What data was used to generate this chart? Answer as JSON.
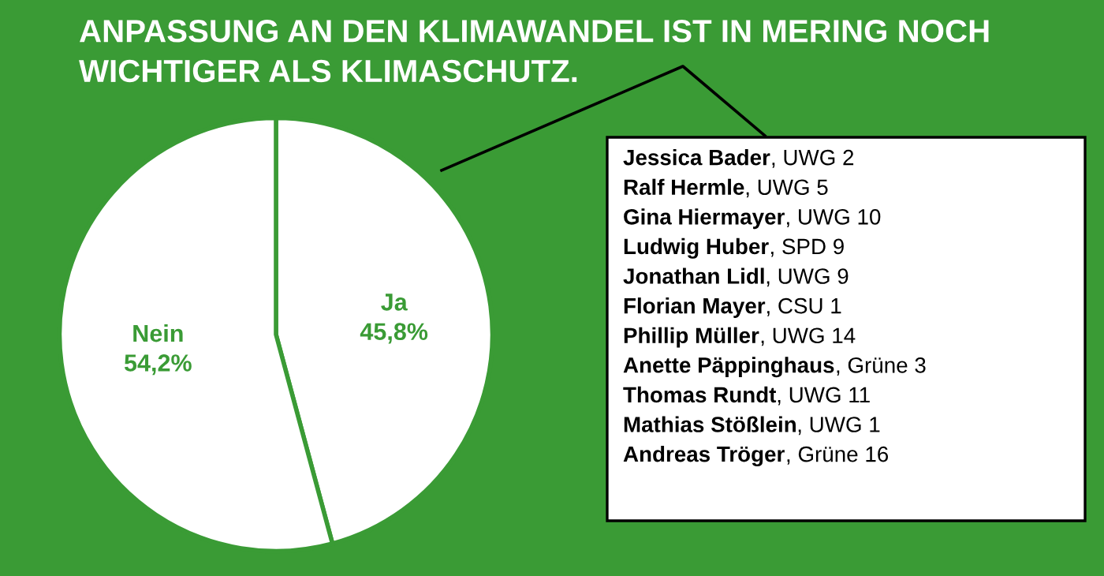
{
  "chart_data": {
    "type": "pie",
    "title": "ANPASSUNG AN DEN KLIMAWANDEL IST IN MERING NOCH\nWICHTIGER ALS KLIMASCHUTZ.",
    "categories": [
      "Ja",
      "Nein"
    ],
    "values": [
      45.8,
      54.2
    ],
    "value_labels": [
      "45,8%",
      "54,2%"
    ],
    "colors": [
      "#ffffff",
      "#ffffff"
    ],
    "annotations": [
      "Jessica Bader, UWG 2",
      "Ralf Hermle, UWG 5",
      "Gina Hiermayer, UWG 10",
      "Ludwig Huber, SPD 9",
      "Jonathan Lidl, UWG 9",
      "Florian Mayer, CSU 1",
      "Phillip Müller, UWG 14",
      "Anette Päppinghaus, Grüne 3",
      "Thomas Rundt, UWG 11",
      "Mathias Stößlein, UWG 1",
      "Andreas Tröger, Grüne 16"
    ],
    "legend": false
  }
}
